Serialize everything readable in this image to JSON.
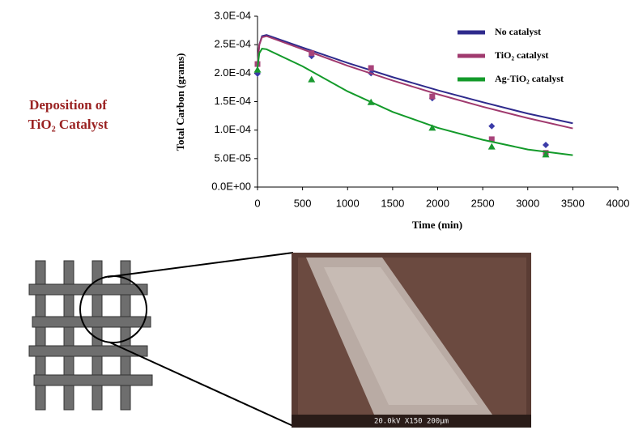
{
  "chart_data": {
    "type": "line-scatter",
    "x_label": "Time (min)",
    "y_label": "Total Carbon (grams)",
    "xlim": [
      0,
      4000
    ],
    "xticks": [
      0,
      500,
      1000,
      1500,
      2000,
      2500,
      3000,
      3500,
      4000
    ],
    "ylim": [
      0,
      0.0003
    ],
    "yticks": [
      {
        "value": 0,
        "label": "0.0E+00"
      },
      {
        "value": 5e-05,
        "label": "5.0E-05"
      },
      {
        "value": 0.0001,
        "label": "1.0E-04"
      },
      {
        "value": 0.00015,
        "label": "1.5E-04"
      },
      {
        "value": 0.0002,
        "label": "2.0E-04"
      },
      {
        "value": 0.00025,
        "label": "2.5E-04"
      },
      {
        "value": 0.0003,
        "label": "3.0E-04"
      }
    ],
    "legend": "upper right",
    "series": [
      {
        "name": "No catalyst",
        "color": "#2e2a8c",
        "marker_color": "#3b3ba8",
        "marker": "diamond",
        "line": {
          "x": [
            0,
            20,
            50,
            100,
            500,
            1000,
            1500,
            2000,
            2500,
            3000,
            3500
          ],
          "values": [
            0.000215,
            0.00025,
            0.000265,
            0.000267,
            0.000245,
            0.000218,
            0.000193,
            0.00017,
            0.000149,
            0.000129,
            0.000112
          ]
        },
        "points": {
          "x": [
            0,
            600,
            1260,
            1940,
            2600,
            3200
          ],
          "values": [
            0.000199,
            0.00023,
            0.0002,
            0.000156,
            0.000107,
            7.4e-05
          ]
        }
      },
      {
        "name": "TiO₂ catalyst",
        "color": "#a03a6e",
        "marker_color": "#a8437a",
        "marker": "square",
        "line": {
          "x": [
            0,
            20,
            50,
            100,
            500,
            1000,
            1500,
            2000,
            2500,
            3000,
            3500
          ],
          "values": [
            0.000215,
            0.00025,
            0.000263,
            0.000265,
            0.000242,
            0.000213,
            0.000187,
            0.000163,
            0.000141,
            0.000121,
            0.000103
          ]
        },
        "points": {
          "x": [
            0,
            600,
            1260,
            1940,
            2600,
            3200
          ],
          "values": [
            0.000216,
            0.000235,
            0.000209,
            0.000159,
            8.4e-05,
            6e-05
          ]
        }
      },
      {
        "name": "Ag-TiO₂ catalyst",
        "color": "#139a2a",
        "marker_color": "#1a9a30",
        "marker": "triangle",
        "line": {
          "x": [
            0,
            20,
            50,
            100,
            500,
            1000,
            1500,
            2000,
            2500,
            3000,
            3500
          ],
          "values": [
            0.00021,
            0.000235,
            0.000243,
            0.000242,
            0.000212,
            0.000168,
            0.000132,
            0.000104,
            8.3e-05,
            6.6e-05,
            5.6e-05
          ]
        },
        "points": {
          "x": [
            0,
            600,
            1260,
            1940,
            2600,
            3200
          ],
          "values": [
            0.000206,
            0.000189,
            0.000149,
            0.000104,
            7.1e-05,
            5.7e-05
          ]
        }
      }
    ]
  },
  "side_label": {
    "line1": "Deposition of",
    "line2": "TiO₂ Catalyst"
  },
  "sem_image": {
    "caption": "20.0kV  X150  200μm"
  }
}
